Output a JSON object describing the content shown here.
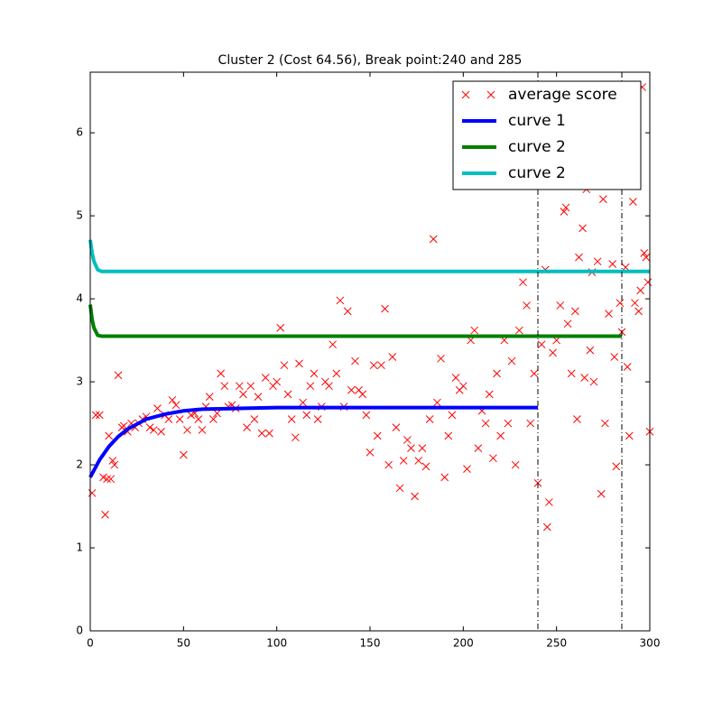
{
  "chart_data": {
    "type": "line",
    "title": "Cluster 2 (Cost 64.56), Break point:240 and 285",
    "xlim": [
      0,
      300
    ],
    "xticks": [
      0,
      50,
      100,
      150,
      200,
      250,
      300
    ],
    "ylim": [
      0,
      6.73
    ],
    "yticks": [
      0,
      1,
      2,
      3,
      4,
      5,
      6
    ],
    "vlines": [
      240,
      285
    ],
    "legend": "upper right",
    "series": [
      {
        "name": "average score",
        "color": "#ff0000",
        "style": "marker",
        "x": [
          1,
          3,
          5,
          7,
          8,
          9,
          10,
          11,
          12,
          13,
          15,
          17,
          18,
          20,
          22,
          24,
          26,
          28,
          30,
          32,
          34,
          36,
          38,
          40,
          42,
          44,
          46,
          48,
          50,
          52,
          54,
          56,
          58,
          60,
          62,
          64,
          66,
          68,
          70,
          72,
          74,
          76,
          78,
          80,
          82,
          84,
          86,
          88,
          90,
          92,
          94,
          96,
          98,
          100,
          102,
          104,
          106,
          108,
          110,
          112,
          114,
          116,
          118,
          120,
          122,
          124,
          126,
          128,
          130,
          132,
          134,
          136,
          138,
          140,
          142,
          144,
          146,
          148,
          150,
          152,
          154,
          156,
          158,
          160,
          162,
          164,
          166,
          168,
          170,
          172,
          174,
          176,
          178,
          180,
          182,
          184,
          186,
          188,
          190,
          192,
          194,
          196,
          198,
          200,
          202,
          204,
          206,
          208,
          210,
          212,
          214,
          216,
          218,
          220,
          222,
          224,
          226,
          228,
          230,
          232,
          234,
          236,
          238,
          240,
          242,
          244,
          245,
          246,
          248,
          250,
          252,
          254,
          255,
          256,
          258,
          260,
          261,
          262,
          264,
          265,
          266,
          268,
          269,
          270,
          272,
          274,
          275,
          276,
          278,
          280,
          281,
          282,
          284,
          285,
          287,
          288,
          289,
          291,
          292,
          294,
          295,
          296,
          297,
          298,
          299,
          300
        ],
        "values": [
          1.66,
          2.6,
          2.6,
          1.85,
          1.4,
          1.83,
          2.35,
          1.83,
          2.05,
          2.0,
          3.08,
          2.45,
          2.47,
          2.4,
          2.5,
          2.45,
          2.5,
          2.55,
          2.58,
          2.45,
          2.42,
          2.68,
          2.4,
          2.6,
          2.55,
          2.78,
          2.72,
          2.55,
          2.12,
          2.42,
          2.6,
          2.62,
          2.55,
          2.42,
          2.7,
          2.82,
          2.55,
          2.62,
          3.1,
          2.95,
          2.7,
          2.72,
          2.68,
          2.95,
          2.85,
          2.45,
          2.95,
          2.55,
          2.82,
          2.38,
          3.05,
          2.38,
          2.95,
          3.0,
          3.65,
          3.2,
          2.85,
          2.55,
          2.33,
          3.22,
          2.75,
          2.6,
          2.95,
          3.1,
          2.55,
          2.7,
          3.0,
          2.95,
          3.45,
          3.1,
          3.98,
          2.7,
          3.85,
          2.9,
          3.25,
          2.9,
          2.85,
          2.6,
          2.15,
          3.2,
          2.35,
          3.2,
          3.88,
          2.0,
          3.3,
          2.45,
          1.72,
          2.05,
          2.3,
          2.2,
          1.62,
          2.05,
          2.2,
          1.98,
          2.55,
          4.72,
          2.75,
          3.28,
          1.85,
          2.35,
          2.6,
          3.05,
          2.9,
          2.95,
          1.95,
          3.5,
          3.62,
          2.2,
          2.65,
          2.5,
          2.85,
          2.08,
          3.1,
          2.35,
          3.5,
          2.5,
          3.25,
          2.0,
          3.62,
          4.2,
          3.92,
          2.5,
          3.1,
          1.78,
          3.45,
          4.35,
          1.25,
          1.55,
          3.35,
          3.5,
          3.92,
          5.05,
          5.1,
          3.7,
          3.1,
          3.85,
          2.55,
          4.5,
          4.85,
          3.05,
          5.32,
          3.38,
          4.32,
          3.0,
          4.45,
          1.65,
          5.2,
          2.5,
          3.82,
          4.42,
          3.3,
          1.98,
          3.95,
          3.6,
          4.38,
          3.18,
          2.35,
          5.17,
          3.95,
          3.85,
          4.1,
          6.55,
          4.55,
          4.5,
          4.2,
          2.4
        ]
      },
      {
        "name": "curve 1",
        "color": "#0000ff",
        "style": "line",
        "x": [
          0,
          5,
          10,
          15,
          20,
          30,
          40,
          50,
          60,
          80,
          100,
          150,
          200,
          240
        ],
        "values": [
          1.85,
          2.06,
          2.22,
          2.34,
          2.43,
          2.55,
          2.61,
          2.65,
          2.67,
          2.68,
          2.69,
          2.69,
          2.69,
          2.69
        ]
      },
      {
        "name": "curve 2",
        "color": "#008000",
        "style": "line",
        "x": [
          0,
          1,
          2,
          4,
          6,
          285
        ],
        "values": [
          3.93,
          3.75,
          3.65,
          3.56,
          3.55,
          3.55
        ]
      },
      {
        "name": "curve 2",
        "color": "#00bfbf",
        "style": "line",
        "x": [
          0,
          1,
          2,
          4,
          6,
          300
        ],
        "values": [
          4.71,
          4.55,
          4.45,
          4.35,
          4.33,
          4.33
        ]
      }
    ]
  }
}
